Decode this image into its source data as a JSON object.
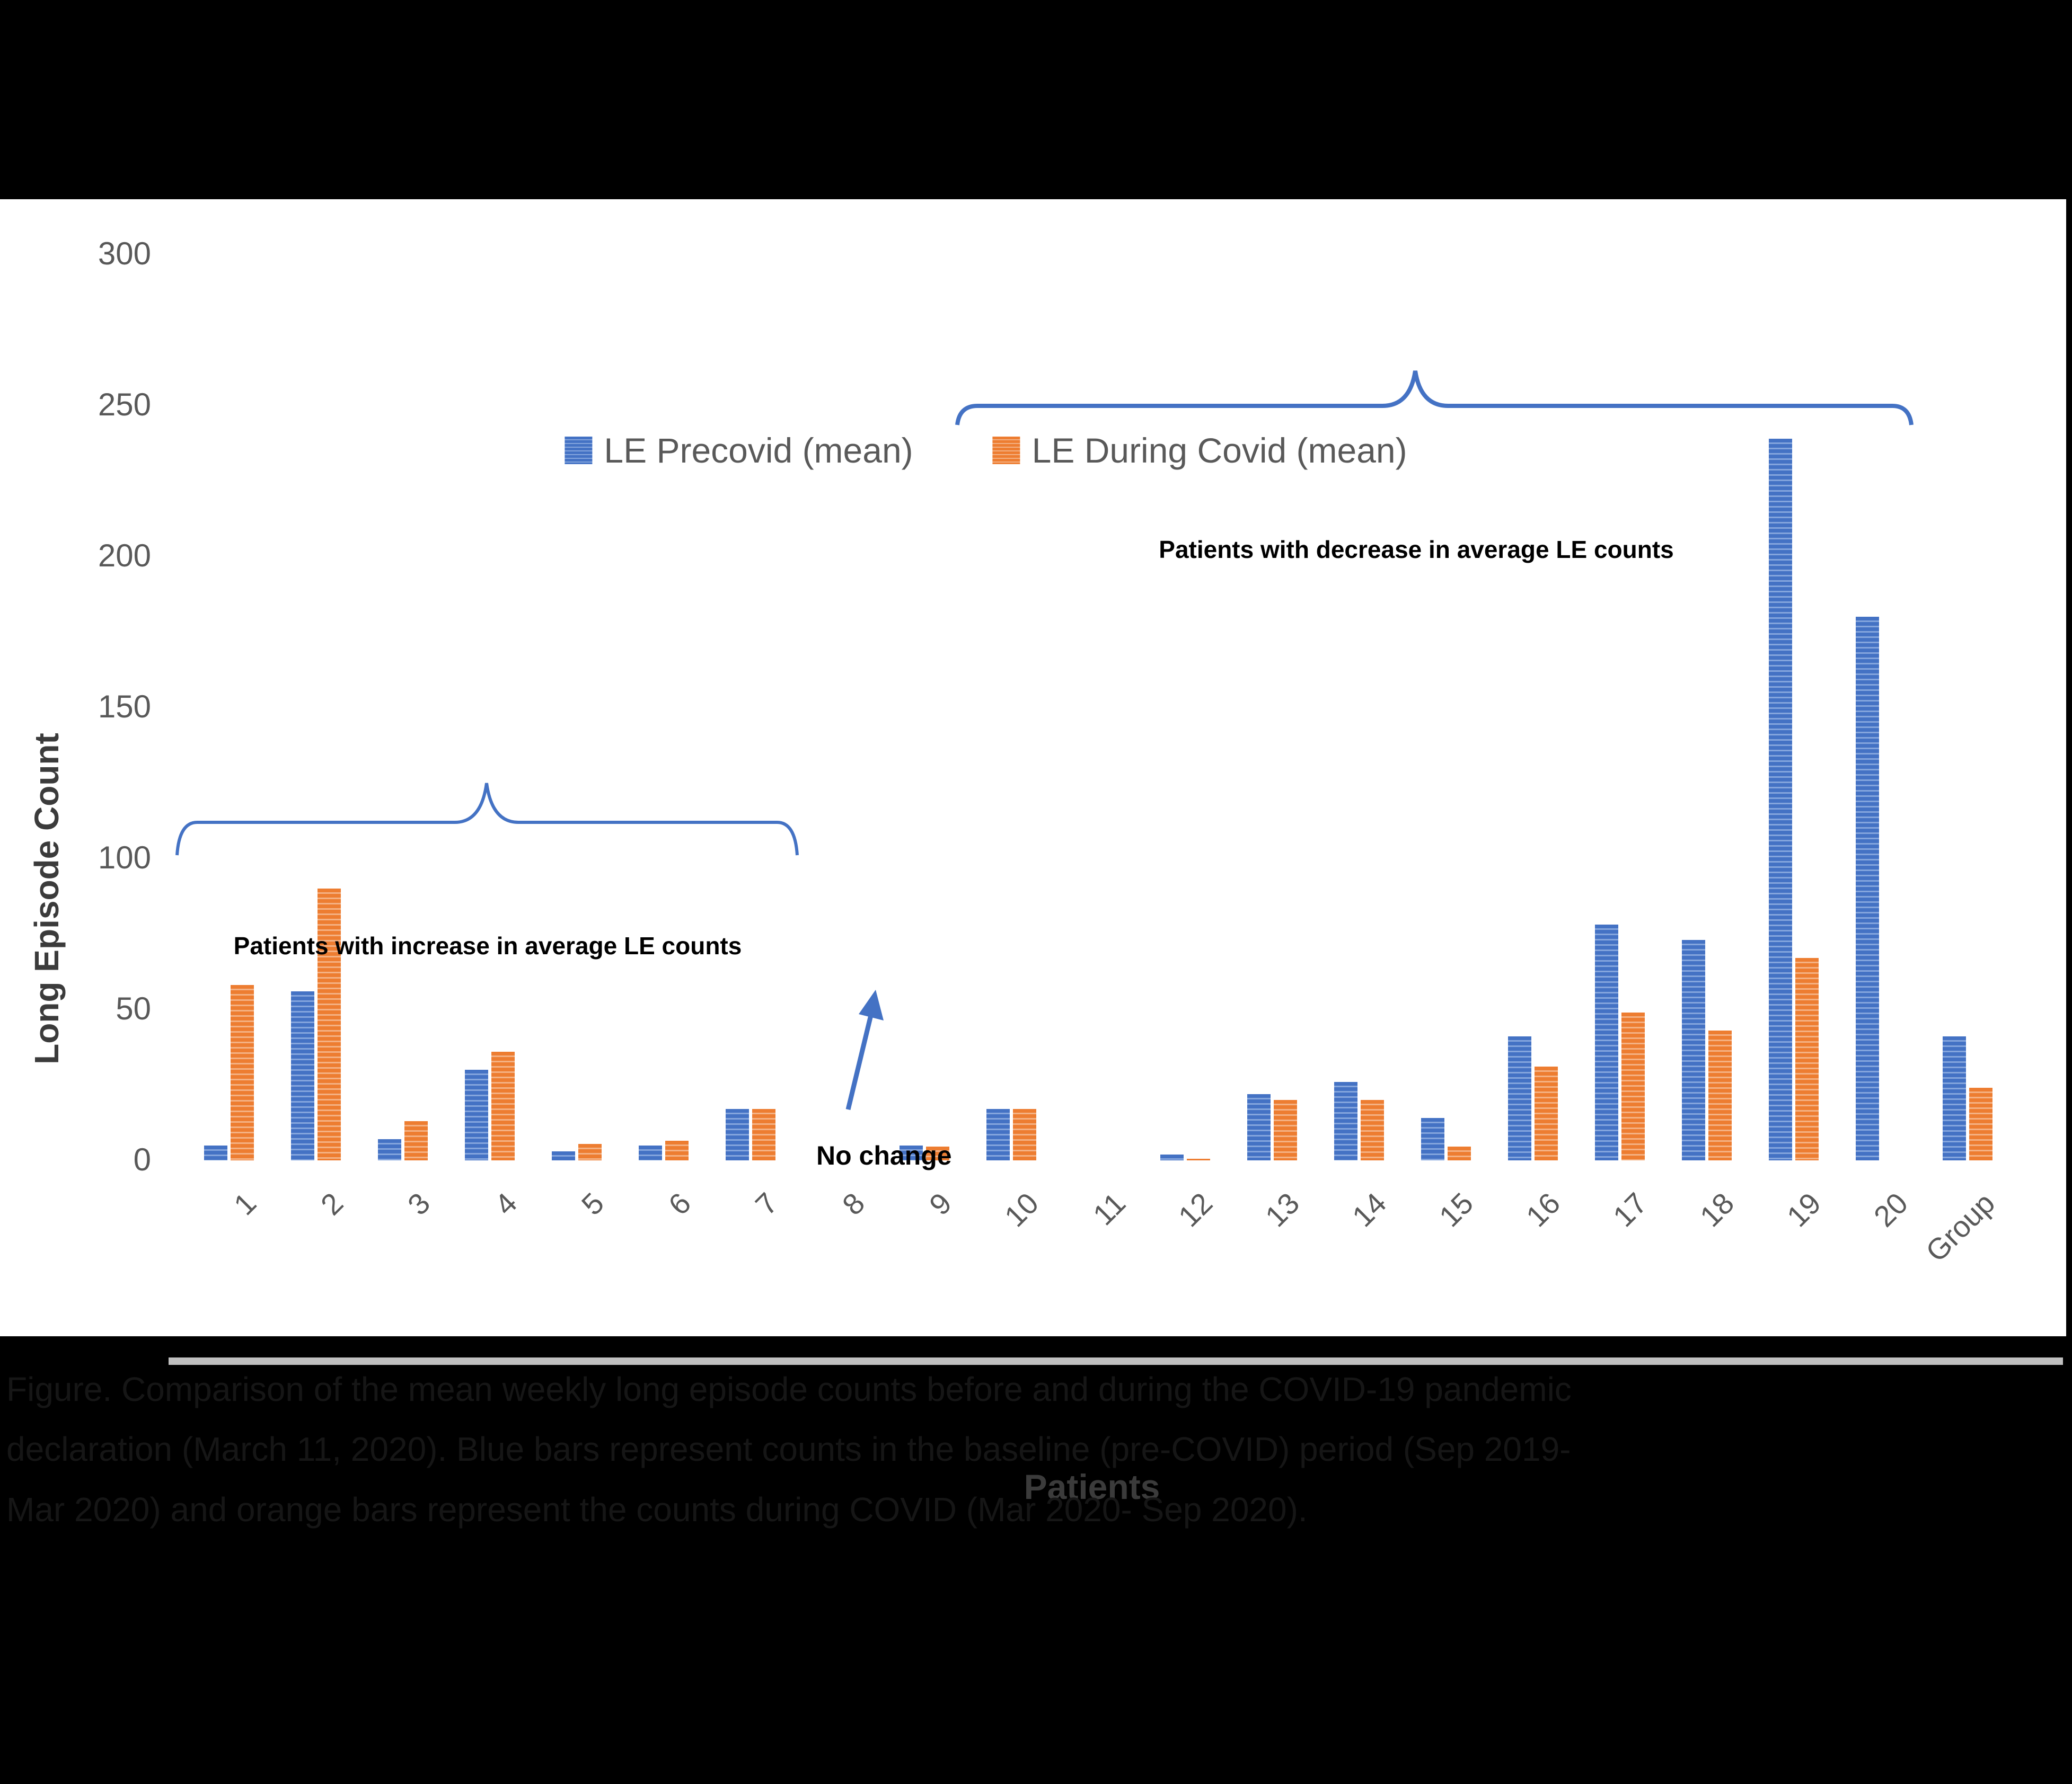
{
  "chart_data": {
    "type": "bar",
    "title": "",
    "categories": [
      "1",
      "2",
      "3",
      "4",
      "5",
      "6",
      "7",
      "8",
      "9",
      "10",
      "11",
      "12",
      "13",
      "14",
      "15",
      "16",
      "17",
      "18",
      "19",
      "20",
      "Group"
    ],
    "series": [
      {
        "name": "LE Precovid (mean)",
        "color": "#4472C4",
        "values": [
          5,
          56,
          7,
          30,
          3,
          5,
          17,
          0,
          5,
          17,
          0,
          2,
          22,
          26,
          14,
          41,
          78,
          73,
          239,
          180,
          41
        ]
      },
      {
        "name": "LE During Covid (mean)",
        "color": "#ED7D31",
        "values": [
          58,
          90,
          13,
          36,
          5.5,
          6.5,
          17,
          0,
          4.5,
          17,
          0,
          0.5,
          20,
          20,
          4.5,
          31,
          49,
          43,
          67,
          0,
          24
        ]
      }
    ],
    "xlabel": "Patients",
    "ylabel": "Long Episode Count",
    "ylim": [
      0,
      300
    ],
    "yticks": [
      0,
      50,
      100,
      150,
      200,
      250,
      300
    ],
    "grid": false,
    "legend_position": "top"
  },
  "annotations": {
    "increase": "Patients with increase in average LE counts",
    "decrease": "Patients with decrease in average LE counts",
    "no_change": "No change"
  },
  "caption": {
    "line1": "Figure. Comparison of the mean weekly long episode counts before and during the COVID-19 pandemic",
    "line2": "declaration (March 11, 2020). Blue bars represent counts in the baseline (pre-COVID) period (Sep 2019-",
    "line3": "Mar 2020) and orange bars represent the counts during COVID (Mar 2020- Sep 2020)."
  },
  "colors": {
    "precovid": "#4472C4",
    "during_covid": "#ED7D31",
    "axis_text": "#595959",
    "axis_title": "#3B3B3B",
    "baseline": "#BFBFBF",
    "annotation": "#000000",
    "caption": "#161616",
    "background": "#000000",
    "panel": "#FFFFFF"
  }
}
